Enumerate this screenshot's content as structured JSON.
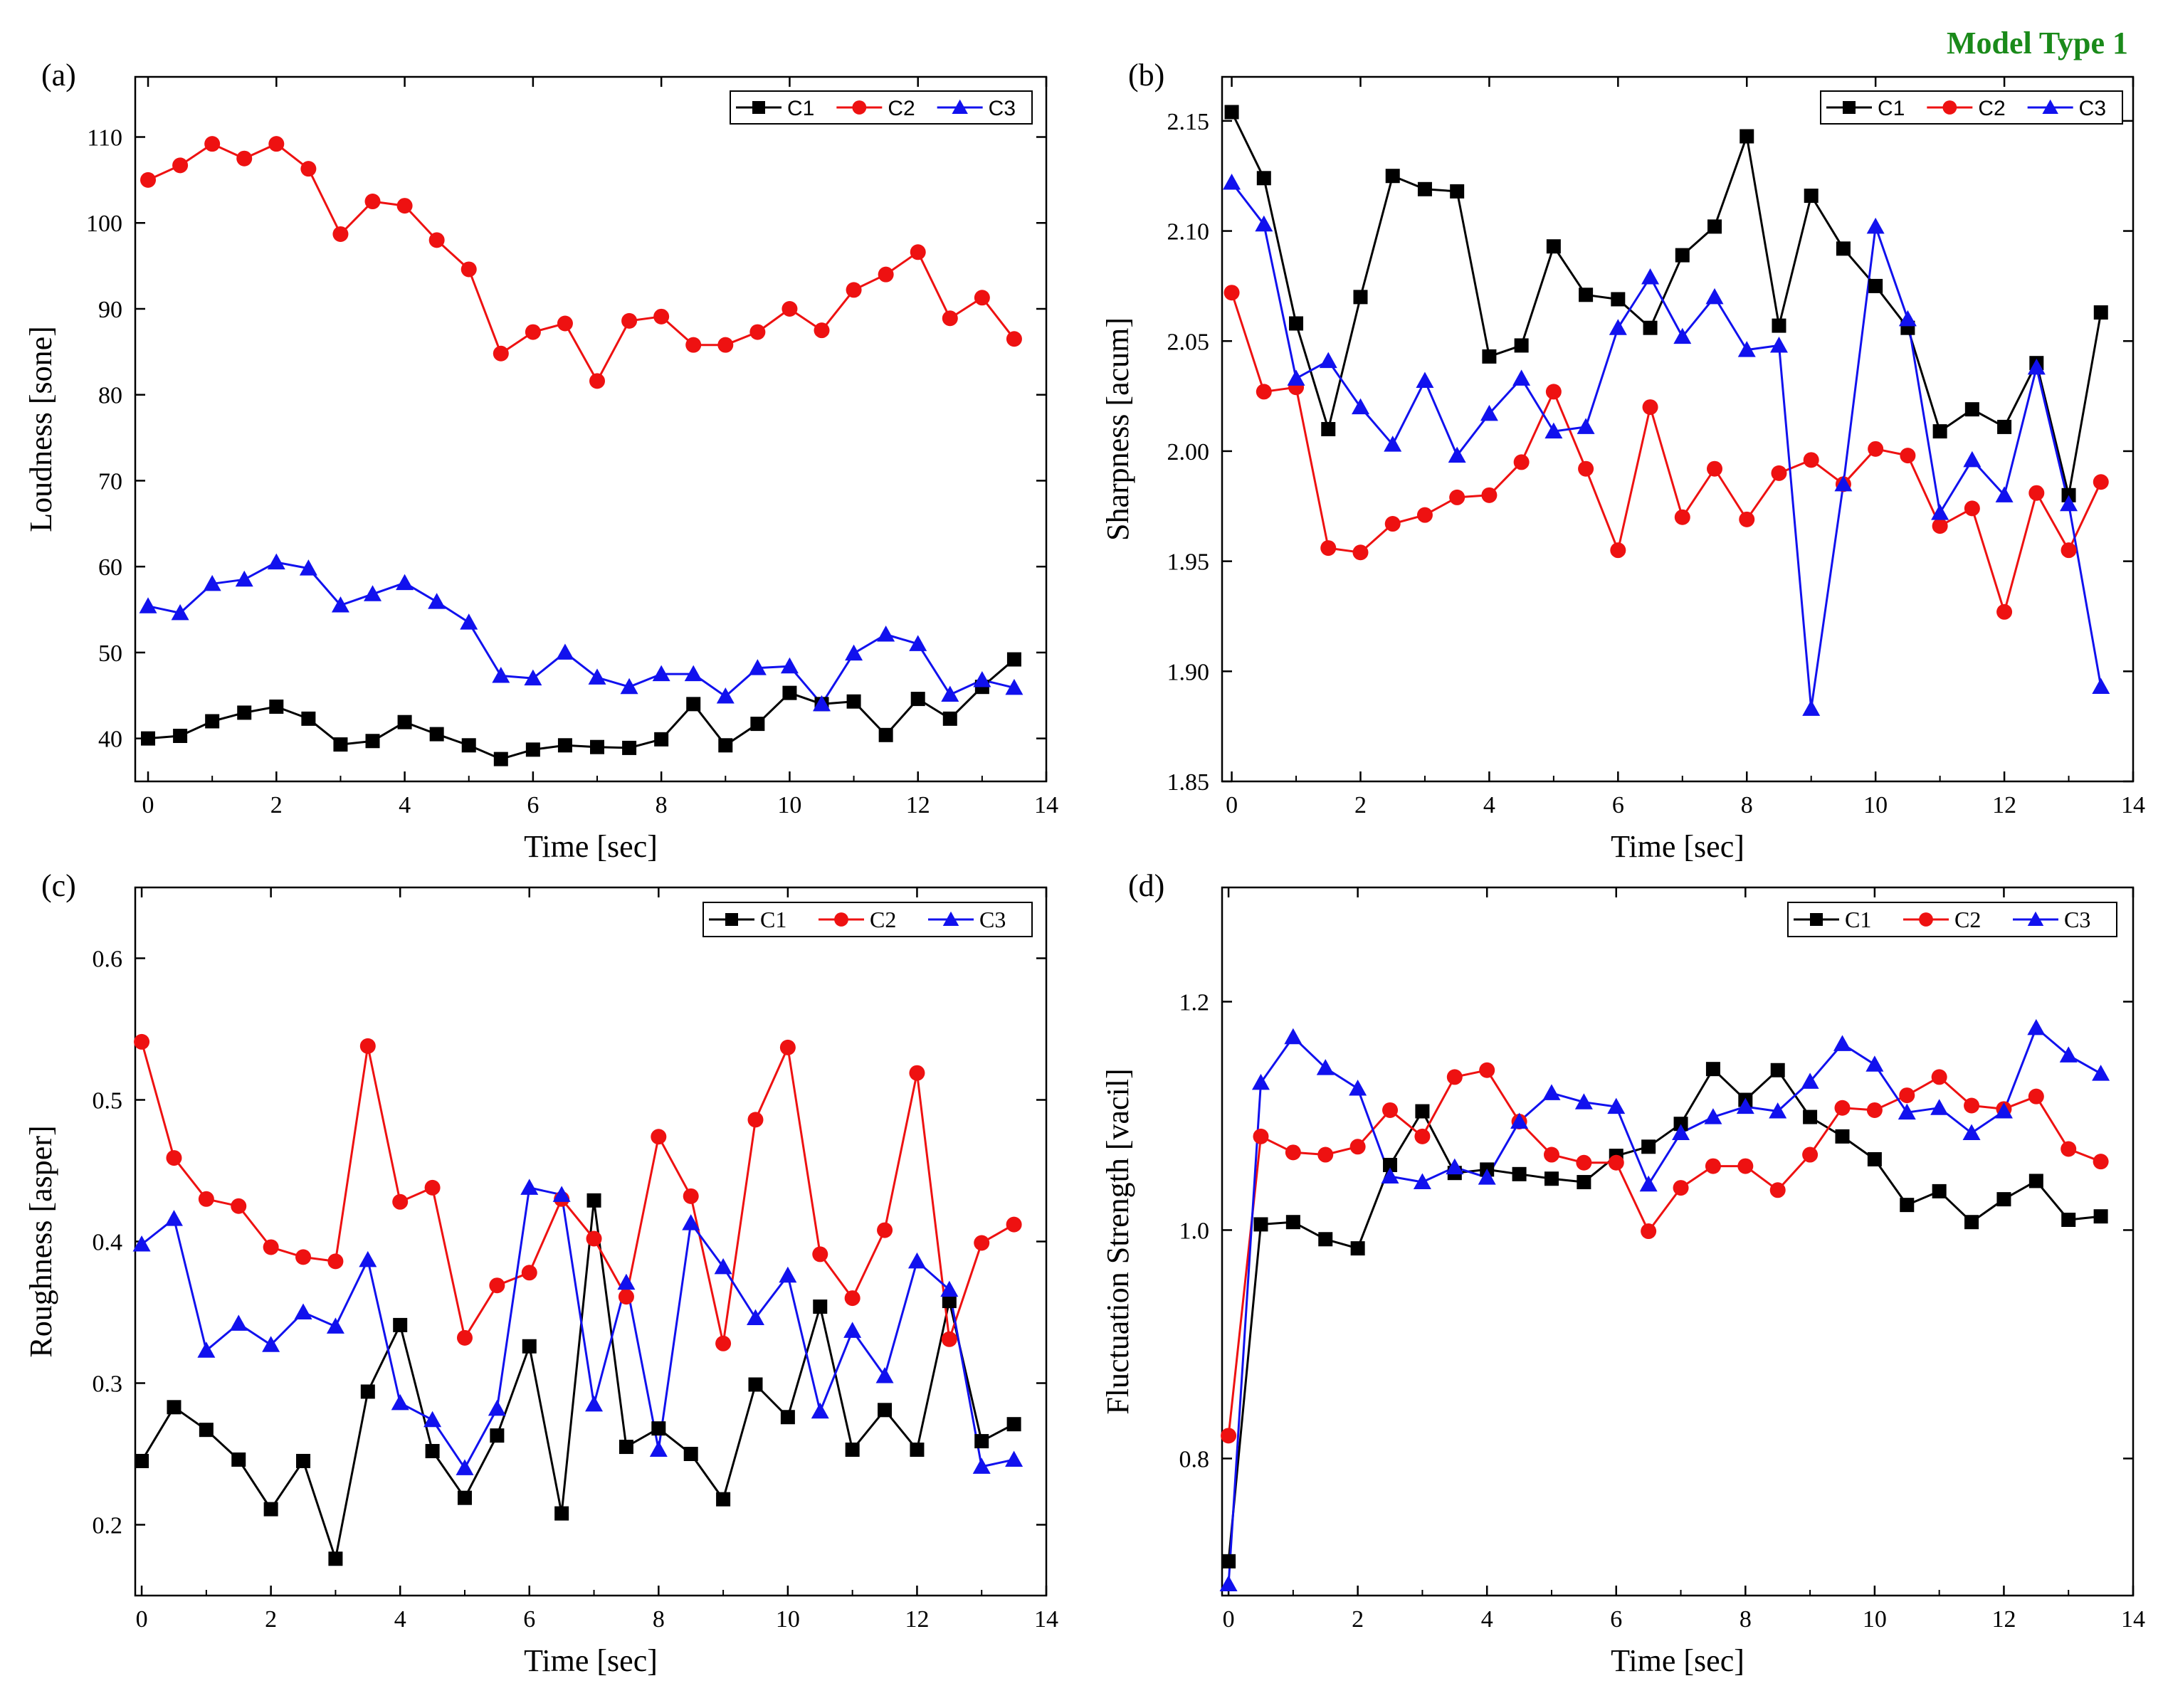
{
  "figure_title": "Model Type 1",
  "title_color": "#1a8a1a",
  "series_colors": {
    "C1": "#000000",
    "C2": "#ee1111",
    "C3": "#1111ee"
  },
  "chart_data": [
    {
      "type": "line",
      "panel": "(a)",
      "title": "",
      "xlabel": "Time [sec]",
      "ylabel": "Loudness [sone]",
      "xlim": [
        -0.2,
        14
      ],
      "ylim": [
        35,
        117
      ],
      "xticks": [
        0,
        2,
        4,
        6,
        8,
        10,
        12,
        14
      ],
      "yticks": [
        40,
        50,
        60,
        70,
        80,
        90,
        100,
        110
      ],
      "ytick_decimals": 0,
      "legend_position": "top-right",
      "x": [
        0,
        0.5,
        1,
        1.5,
        2,
        2.5,
        3,
        3.5,
        4,
        4.5,
        5,
        5.5,
        6,
        6.5,
        7,
        7.5,
        8,
        8.5,
        9,
        9.5,
        10,
        10.5,
        11,
        11.5,
        12,
        12.5,
        13,
        13.5
      ],
      "series": [
        {
          "name": "C1",
          "marker": "square",
          "values": [
            40.0,
            40.3,
            42.0,
            43.0,
            43.7,
            42.3,
            39.3,
            39.7,
            41.9,
            40.5,
            39.2,
            37.6,
            38.7,
            39.2,
            39.0,
            38.9,
            39.9,
            44.0,
            39.2,
            41.7,
            45.3,
            44.0,
            44.3,
            40.4,
            44.6,
            42.3,
            46.0,
            49.2
          ]
        },
        {
          "name": "C2",
          "marker": "circle",
          "values": [
            105.0,
            106.7,
            109.2,
            107.5,
            109.2,
            106.3,
            98.7,
            102.5,
            102.0,
            98.0,
            94.6,
            84.8,
            87.3,
            88.3,
            81.6,
            88.6,
            89.1,
            85.8,
            85.8,
            87.3,
            90.0,
            87.5,
            92.2,
            94.0,
            96.6,
            88.9,
            91.3,
            86.5
          ]
        },
        {
          "name": "C3",
          "marker": "triangle",
          "values": [
            55.4,
            54.6,
            58.0,
            58.5,
            60.5,
            59.8,
            55.5,
            56.8,
            58.1,
            55.9,
            53.5,
            47.3,
            47.0,
            50.0,
            47.1,
            46.0,
            47.5,
            47.5,
            44.9,
            48.2,
            48.4,
            44.0,
            49.9,
            52.1,
            51.0,
            45.1,
            46.8,
            45.9
          ]
        }
      ]
    },
    {
      "type": "line",
      "panel": "(b)",
      "title": "",
      "xlabel": "Time [sec]",
      "ylabel": "Sharpness [acum]",
      "xlim": [
        -0.15,
        14
      ],
      "ylim": [
        1.85,
        2.17
      ],
      "xticks": [
        0,
        2,
        4,
        6,
        8,
        10,
        12,
        14
      ],
      "yticks": [
        1.85,
        1.9,
        1.95,
        2.0,
        2.05,
        2.1,
        2.15
      ],
      "ytick_decimals": 2,
      "legend_position": "top-right",
      "x": [
        0,
        0.5,
        1,
        1.5,
        2,
        2.5,
        3,
        3.5,
        4,
        4.5,
        5,
        5.5,
        6,
        6.5,
        7,
        7.5,
        8,
        8.5,
        9,
        9.5,
        10,
        10.5,
        11,
        11.5,
        12,
        12.5,
        13,
        13.5
      ],
      "series": [
        {
          "name": "C1",
          "marker": "square",
          "values": [
            2.154,
            2.124,
            2.058,
            2.01,
            2.07,
            2.125,
            2.119,
            2.118,
            2.043,
            2.048,
            2.093,
            2.071,
            2.069,
            2.056,
            2.089,
            2.102,
            2.143,
            2.057,
            2.116,
            2.092,
            2.075,
            2.056,
            2.009,
            2.019,
            2.011,
            2.04,
            1.98,
            2.063
          ]
        },
        {
          "name": "C2",
          "marker": "circle",
          "values": [
            2.072,
            2.027,
            2.029,
            1.956,
            1.954,
            1.967,
            1.971,
            1.979,
            1.98,
            1.995,
            2.027,
            1.992,
            1.955,
            2.02,
            1.97,
            1.992,
            1.969,
            1.99,
            1.996,
            1.985,
            2.001,
            1.998,
            1.966,
            1.974,
            1.927,
            1.981,
            1.955,
            1.986
          ]
        },
        {
          "name": "C3",
          "marker": "triangle",
          "values": [
            2.122,
            2.103,
            2.033,
            2.041,
            2.02,
            2.003,
            2.032,
            1.998,
            2.017,
            2.033,
            2.009,
            2.011,
            2.056,
            2.079,
            2.052,
            2.07,
            2.046,
            2.048,
            1.883,
            1.985,
            2.102,
            2.06,
            1.972,
            1.996,
            1.98,
            2.038,
            1.976,
            1.893
          ]
        }
      ]
    },
    {
      "type": "line",
      "panel": "(c)",
      "title": "",
      "xlabel": "Time [sec]",
      "ylabel": "Roughness [asper]",
      "xlim": [
        -0.1,
        14
      ],
      "ylim": [
        0.15,
        0.65
      ],
      "xticks": [
        0,
        2,
        4,
        6,
        8,
        10,
        12,
        14
      ],
      "yticks": [
        0.2,
        0.3,
        0.4,
        0.5,
        0.6
      ],
      "ytick_decimals": 1,
      "legend_position": "top-right",
      "x": [
        0,
        0.5,
        1,
        1.5,
        2,
        2.5,
        3,
        3.5,
        4,
        4.5,
        5,
        5.5,
        6,
        6.5,
        7,
        7.5,
        8,
        8.5,
        9,
        9.5,
        10,
        10.5,
        11,
        11.5,
        12,
        12.5,
        13,
        13.5
      ],
      "series": [
        {
          "name": "C1",
          "marker": "square",
          "values": [
            0.245,
            0.283,
            0.267,
            0.246,
            0.211,
            0.245,
            0.176,
            0.294,
            0.341,
            0.252,
            0.219,
            0.263,
            0.326,
            0.208,
            0.429,
            0.255,
            0.268,
            0.25,
            0.218,
            0.299,
            0.276,
            0.354,
            0.253,
            0.281,
            0.253,
            0.358,
            0.259,
            0.271
          ]
        },
        {
          "name": "C2",
          "marker": "circle",
          "values": [
            0.541,
            0.459,
            0.43,
            0.425,
            0.396,
            0.389,
            0.386,
            0.538,
            0.428,
            0.438,
            0.332,
            0.369,
            0.378,
            0.43,
            0.402,
            0.361,
            0.474,
            0.432,
            0.328,
            0.486,
            0.537,
            0.391,
            0.36,
            0.408,
            0.519,
            0.331,
            0.399,
            0.412
          ]
        },
        {
          "name": "C3",
          "marker": "triangle",
          "values": [
            0.398,
            0.416,
            0.323,
            0.342,
            0.327,
            0.35,
            0.34,
            0.387,
            0.286,
            0.274,
            0.24,
            0.282,
            0.438,
            0.433,
            0.285,
            0.371,
            0.253,
            0.413,
            0.382,
            0.346,
            0.376,
            0.28,
            0.337,
            0.305,
            0.386,
            0.366,
            0.241,
            0.246
          ]
        }
      ]
    },
    {
      "type": "line",
      "panel": "(d)",
      "title": "",
      "xlabel": "Time [sec]",
      "ylabel": "Fluctuation Strength [vacil]",
      "xlim": [
        -0.1,
        14
      ],
      "ylim": [
        0.68,
        1.3
      ],
      "xticks": [
        0,
        2,
        4,
        6,
        8,
        10,
        12,
        14
      ],
      "yticks": [
        0.8,
        1.0,
        1.2
      ],
      "ytick_decimals": 1,
      "legend_position": "top-right",
      "x": [
        0,
        0.5,
        1,
        1.5,
        2,
        2.5,
        3,
        3.5,
        4,
        4.5,
        5,
        5.5,
        6,
        6.5,
        7,
        7.5,
        8,
        8.5,
        9,
        9.5,
        10,
        10.5,
        11,
        11.5,
        12,
        12.5,
        13,
        13.5
      ],
      "series": [
        {
          "name": "C1",
          "marker": "square",
          "values": [
            0.71,
            1.005,
            1.007,
            0.992,
            0.984,
            1.057,
            1.104,
            1.05,
            1.053,
            1.049,
            1.045,
            1.042,
            1.065,
            1.073,
            1.093,
            1.141,
            1.114,
            1.14,
            1.099,
            1.082,
            1.062,
            1.022,
            1.034,
            1.007,
            1.027,
            1.043,
            1.009,
            1.012
          ]
        },
        {
          "name": "C2",
          "marker": "circle",
          "values": [
            0.82,
            1.082,
            1.068,
            1.066,
            1.073,
            1.105,
            1.082,
            1.134,
            1.14,
            1.095,
            1.066,
            1.059,
            1.059,
            0.999,
            1.037,
            1.056,
            1.056,
            1.035,
            1.066,
            1.107,
            1.105,
            1.118,
            1.134,
            1.109,
            1.106,
            1.117,
            1.071,
            1.06
          ]
        },
        {
          "name": "C3",
          "marker": "triangle",
          "values": [
            0.69,
            1.129,
            1.169,
            1.142,
            1.124,
            1.047,
            1.042,
            1.055,
            1.046,
            1.095,
            1.12,
            1.112,
            1.108,
            1.04,
            1.085,
            1.099,
            1.108,
            1.104,
            1.13,
            1.163,
            1.145,
            1.103,
            1.107,
            1.085,
            1.104,
            1.177,
            1.153,
            1.137
          ]
        }
      ]
    }
  ]
}
